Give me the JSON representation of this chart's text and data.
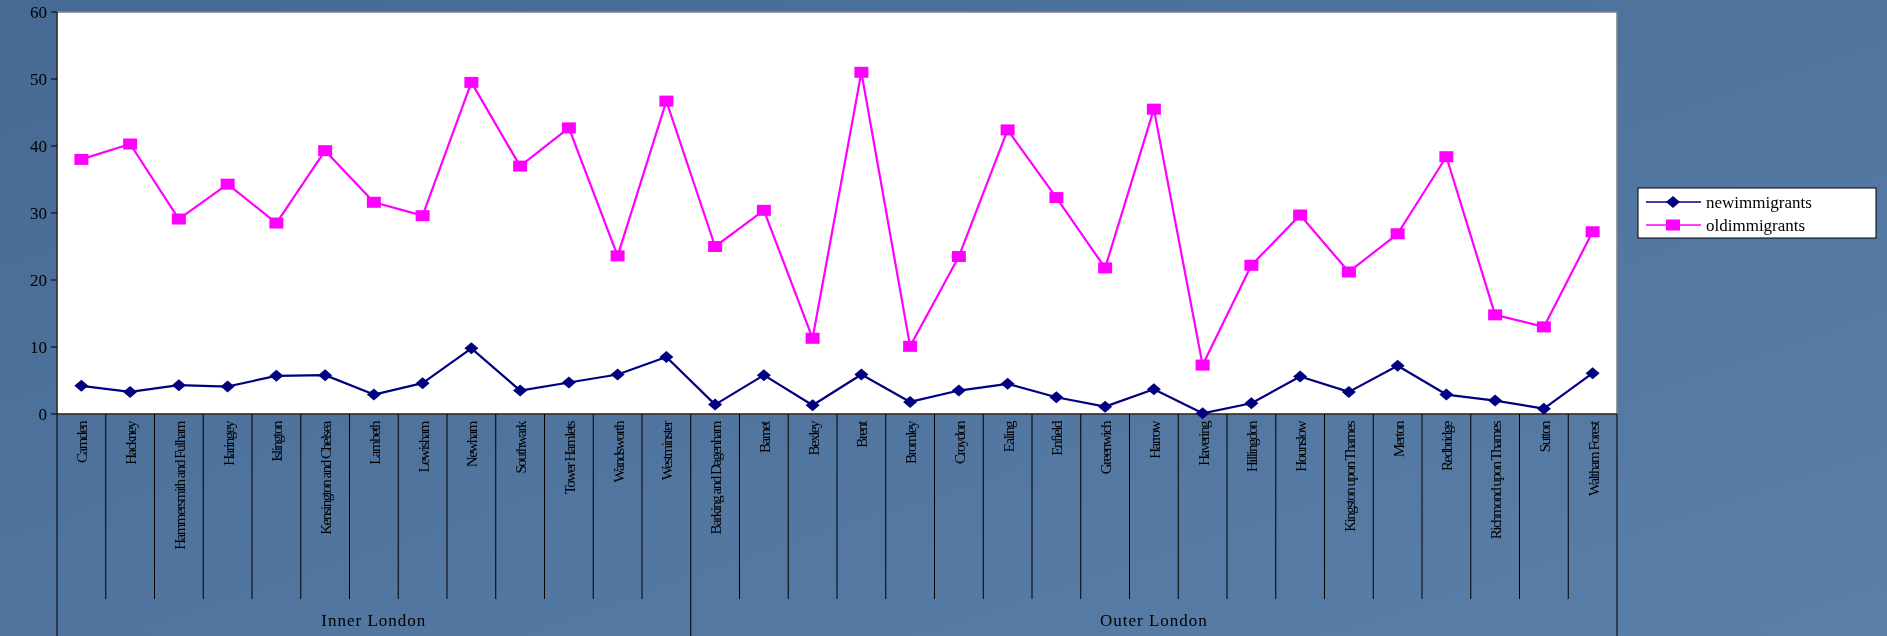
{
  "chart_data": {
    "type": "line",
    "categories": [
      "Camden",
      "Hackney",
      "Hammersmith and Fulham",
      "Haringey",
      "Islington",
      "Kensington and Chelsea",
      "Lambeth",
      "Lewisham",
      "Newham",
      "Southwark",
      "Tower Hamlets",
      "Wandsworth",
      "Westminster",
      "Barking and Dagenham",
      "Barnet",
      "Bexley",
      "Brent",
      "Bromley",
      "Croydon",
      "Ealing",
      "Enfield",
      "Greenwich",
      "Harrow",
      "Havering",
      "Hillingdon",
      "Hounslow",
      "Kingston upon Thames",
      "Merton",
      "Redbridge",
      "Richmond upon Thames",
      "Sutton",
      "Waltham Forest"
    ],
    "series": [
      {
        "name": "newimmigrants",
        "color": "#000080",
        "marker": "diamond",
        "values": [
          4.2,
          3.3,
          4.3,
          4.1,
          5.7,
          5.8,
          2.9,
          4.6,
          9.8,
          3.5,
          4.7,
          5.9,
          8.5,
          1.4,
          5.8,
          1.3,
          5.9,
          1.8,
          3.5,
          4.5,
          2.5,
          1.1,
          3.7,
          0.1,
          1.6,
          5.6,
          3.3,
          7.2,
          2.9,
          2.0,
          0.8,
          6.1
        ]
      },
      {
        "name": "oldimmigrants",
        "color": "#ff00ff",
        "marker": "square",
        "values": [
          38.0,
          40.3,
          29.1,
          34.3,
          28.5,
          39.3,
          31.6,
          29.6,
          49.5,
          37.0,
          42.7,
          23.6,
          46.7,
          25.0,
          30.4,
          11.3,
          51.0,
          10.1,
          23.5,
          42.4,
          32.3,
          21.8,
          45.5,
          7.3,
          22.2,
          29.7,
          21.2,
          26.9,
          38.4,
          14.8,
          13.0,
          27.2
        ]
      }
    ],
    "ylim": [
      0,
      60
    ],
    "yticks": [
      0,
      10,
      20,
      30,
      40,
      50,
      60
    ],
    "annotations": [
      "Inner London",
      "Outer London"
    ],
    "legend": "right",
    "grid": false
  }
}
